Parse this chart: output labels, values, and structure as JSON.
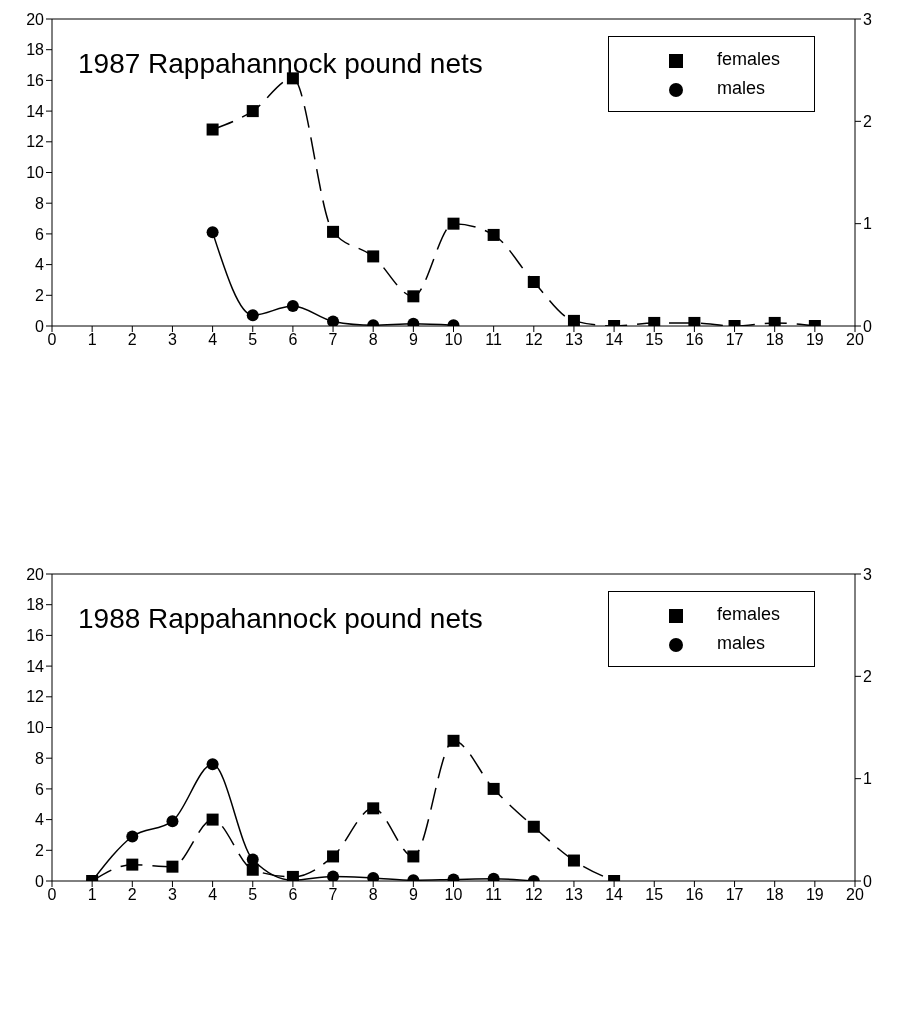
{
  "chart_data": [
    {
      "type": "line",
      "title": "1987 Rappahannock pound nets",
      "xlim": [
        0,
        20
      ],
      "xticks": [
        0,
        1,
        2,
        3,
        4,
        5,
        6,
        7,
        8,
        9,
        10,
        11,
        12,
        13,
        14,
        15,
        16,
        17,
        18,
        19,
        20
      ],
      "ylim": [
        0,
        20
      ],
      "yticks": [
        0,
        2,
        4,
        6,
        8,
        10,
        12,
        14,
        16,
        18,
        20
      ],
      "y2lim": [
        0,
        3
      ],
      "y2ticks": [
        0,
        1,
        2,
        3
      ],
      "legend": "top right",
      "grid": false,
      "series": [
        {
          "name": "males",
          "color": "#000000",
          "marker": "circle",
          "line_style": "solid",
          "x": [
            4,
            5,
            6,
            7,
            8,
            9,
            10
          ],
          "values": [
            6.1,
            0.7,
            1.3,
            0.3,
            0.05,
            0.15,
            0.05
          ]
        },
        {
          "name": "females",
          "color": "#000000",
          "marker": "square",
          "line_style": "dashed",
          "axis": "y2",
          "x": [
            4,
            5,
            6,
            7,
            8,
            9,
            10,
            11,
            12,
            13,
            14,
            15,
            16,
            17,
            18,
            19
          ],
          "values": [
            1.92,
            2.1,
            2.42,
            0.92,
            0.68,
            0.29,
            1.0,
            0.89,
            0.43,
            0.05,
            0,
            0.03,
            0.03,
            0,
            0.03,
            0
          ]
        }
      ]
    },
    {
      "type": "line",
      "title": "1988 Rappahannock pound nets",
      "xlim": [
        0,
        20
      ],
      "xticks": [
        0,
        1,
        2,
        3,
        4,
        5,
        6,
        7,
        8,
        9,
        10,
        11,
        12,
        13,
        14,
        15,
        16,
        17,
        18,
        19,
        20
      ],
      "ylim": [
        0,
        20
      ],
      "yticks": [
        0,
        2,
        4,
        6,
        8,
        10,
        12,
        14,
        16,
        18,
        20
      ],
      "y2lim": [
        0,
        3
      ],
      "y2ticks": [
        0,
        1,
        2,
        3
      ],
      "legend": "top right",
      "grid": false,
      "series": [
        {
          "name": "males",
          "color": "#000000",
          "marker": "circle",
          "line_style": "solid",
          "x": [
            1,
            2,
            3,
            4,
            5,
            6,
            7,
            8,
            9,
            10,
            11,
            12
          ],
          "values": [
            0,
            2.9,
            3.9,
            7.6,
            1.4,
            0.05,
            0.3,
            0.2,
            0.05,
            0.1,
            0.15,
            0
          ]
        },
        {
          "name": "females",
          "color": "#000000",
          "marker": "square",
          "line_style": "dashed",
          "axis": "y2",
          "x": [
            1,
            2,
            3,
            4,
            5,
            6,
            7,
            8,
            9,
            10,
            11,
            12,
            13,
            14
          ],
          "values": [
            0,
            0.16,
            0.14,
            0.6,
            0.11,
            0.04,
            0.24,
            0.71,
            0.24,
            1.37,
            0.9,
            0.53,
            0.2,
            0
          ]
        }
      ]
    }
  ]
}
